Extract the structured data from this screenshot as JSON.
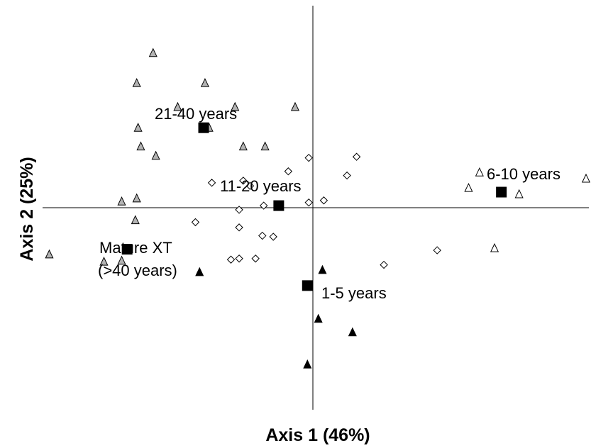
{
  "chart_data": {
    "type": "scatter",
    "title": "",
    "xlabel": "Axis 1 (46%)",
    "ylabel": "Axis 2 (25%)",
    "xlim": [
      -1.0,
      1.0
    ],
    "ylim": [
      -1.0,
      1.0
    ],
    "grid": false,
    "series": [
      {
        "marker": "triangle",
        "fill": "#b3b3b3",
        "points": [
          [
            -0.585,
            0.745
          ],
          [
            -0.645,
            0.6
          ],
          [
            -0.395,
            0.6
          ],
          [
            -0.495,
            0.485
          ],
          [
            -0.285,
            0.485
          ],
          [
            -0.065,
            0.485
          ],
          [
            -0.64,
            0.385
          ],
          [
            -0.38,
            0.385
          ],
          [
            -0.63,
            0.295
          ],
          [
            -0.575,
            0.25
          ],
          [
            -0.255,
            0.295
          ],
          [
            -0.175,
            0.295
          ],
          [
            -0.7,
            0.03
          ],
          [
            -0.645,
            0.045
          ],
          [
            -0.65,
            -0.06
          ],
          [
            -0.765,
            -0.26
          ],
          [
            -0.7,
            -0.255
          ],
          [
            -0.965,
            -0.225
          ]
        ]
      },
      {
        "marker": "diamond",
        "fill": "#ffffff",
        "points": [
          [
            -0.015,
            0.24
          ],
          [
            0.16,
            0.245
          ],
          [
            -0.09,
            0.175
          ],
          [
            0.125,
            0.155
          ],
          [
            -0.255,
            0.13
          ],
          [
            -0.37,
            0.12
          ],
          [
            -0.23,
            0.105
          ],
          [
            0.04,
            0.035
          ],
          [
            -0.015,
            0.025
          ],
          [
            -0.18,
            0.01
          ],
          [
            -0.27,
            -0.01
          ],
          [
            -0.43,
            -0.07
          ],
          [
            -0.27,
            -0.095
          ],
          [
            -0.185,
            -0.135
          ],
          [
            -0.145,
            -0.14
          ],
          [
            -0.27,
            -0.245
          ],
          [
            -0.21,
            -0.245
          ],
          [
            -0.3,
            -0.25
          ],
          [
            0.26,
            -0.275
          ],
          [
            0.455,
            -0.205
          ]
        ]
      },
      {
        "marker": "triangle",
        "fill": "#ffffff",
        "points": [
          [
            0.61,
            0.17
          ],
          [
            1.0,
            0.14
          ],
          [
            0.57,
            0.095
          ],
          [
            0.755,
            0.065
          ],
          [
            0.665,
            -0.195
          ]
        ]
      },
      {
        "marker": "triangle",
        "fill": "#000000",
        "points": [
          [
            0.035,
            -0.3
          ],
          [
            -0.415,
            -0.31
          ],
          [
            0.02,
            -0.535
          ],
          [
            0.145,
            -0.6
          ],
          [
            -0.02,
            -0.755
          ]
        ]
      }
    ],
    "centroids": [
      {
        "label": "21-40 years",
        "x": -0.4,
        "y": 0.385
      },
      {
        "label": "11-20 years",
        "x": -0.125,
        "y": 0.01
      },
      {
        "label": "6-10 years",
        "x": 0.69,
        "y": 0.075
      },
      {
        "label": "Mature XT\n(>40 years)",
        "x": -0.68,
        "y": -0.2
      },
      {
        "label": "1-5 years",
        "x": -0.02,
        "y": -0.375
      }
    ]
  },
  "labels": {
    "c21_40": "21-40 years",
    "c11_20": "11-20 years",
    "c6_10": "6-10 years",
    "mature_line1": "Mature XT",
    "mature_line2": "(>40 years)",
    "c1_5": "1-5 years"
  }
}
